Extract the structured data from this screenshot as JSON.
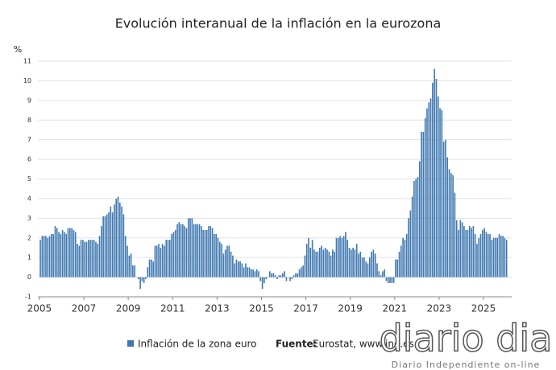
{
  "chart_data": {
    "type": "bar",
    "title": "Evolución interanual de la inflación en la eurozona",
    "y_label": "%",
    "series": [
      {
        "name": "Inflación de la zona euro",
        "color": "#3f78b0",
        "values": [
          1.9,
          2.1,
          2.1,
          2.1,
          2.0,
          2.1,
          2.2,
          2.2,
          2.6,
          2.5,
          2.3,
          2.2,
          2.4,
          2.3,
          2.2,
          2.5,
          2.5,
          2.5,
          2.4,
          2.3,
          1.7,
          1.6,
          1.9,
          1.9,
          1.8,
          1.8,
          1.9,
          1.9,
          1.9,
          1.9,
          1.8,
          1.7,
          2.1,
          2.6,
          3.1,
          3.1,
          3.2,
          3.3,
          3.6,
          3.3,
          3.7,
          4.0,
          4.1,
          3.8,
          3.6,
          3.2,
          2.1,
          1.6,
          1.1,
          1.2,
          0.6,
          0.6,
          0.0,
          -0.1,
          -0.6,
          -0.2,
          -0.3,
          -0.1,
          0.5,
          0.9,
          0.9,
          0.8,
          1.6,
          1.6,
          1.7,
          1.5,
          1.7,
          1.6,
          1.9,
          1.9,
          1.9,
          2.2,
          2.3,
          2.4,
          2.7,
          2.8,
          2.7,
          2.7,
          2.6,
          2.5,
          3.0,
          3.0,
          3.0,
          2.7,
          2.7,
          2.7,
          2.7,
          2.6,
          2.4,
          2.4,
          2.4,
          2.6,
          2.6,
          2.5,
          2.2,
          2.2,
          2.0,
          1.8,
          1.7,
          1.2,
          1.4,
          1.6,
          1.6,
          1.3,
          1.1,
          0.7,
          0.9,
          0.8,
          0.8,
          0.7,
          0.5,
          0.7,
          0.5,
          0.5,
          0.4,
          0.4,
          0.3,
          0.4,
          0.3,
          -0.2,
          -0.6,
          -0.3,
          -0.1,
          0.0,
          0.3,
          0.2,
          0.2,
          0.1,
          -0.1,
          0.1,
          0.1,
          0.2,
          0.3,
          -0.2,
          0.0,
          -0.2,
          -0.1,
          0.1,
          0.2,
          0.2,
          0.4,
          0.5,
          0.6,
          1.1,
          1.7,
          2.0,
          1.5,
          1.9,
          1.4,
          1.3,
          1.3,
          1.5,
          1.6,
          1.4,
          1.5,
          1.4,
          1.3,
          1.1,
          1.4,
          1.3,
          2.0,
          2.0,
          2.1,
          2.0,
          2.1,
          2.3,
          1.9,
          1.5,
          1.4,
          1.5,
          1.4,
          1.7,
          1.2,
          1.3,
          1.0,
          1.0,
          0.8,
          0.7,
          1.0,
          1.3,
          1.4,
          1.2,
          0.7,
          0.3,
          0.1,
          0.3,
          0.4,
          -0.2,
          -0.3,
          -0.3,
          -0.3,
          -0.3,
          0.9,
          0.9,
          1.3,
          1.6,
          2.0,
          1.9,
          2.2,
          3.0,
          3.4,
          4.1,
          4.9,
          5.0,
          5.1,
          5.9,
          7.4,
          7.4,
          8.1,
          8.6,
          8.9,
          9.1,
          9.9,
          10.6,
          10.1,
          9.2,
          8.6,
          8.5,
          6.9,
          7.0,
          6.1,
          5.5,
          5.3,
          5.2,
          4.3,
          2.9,
          2.4,
          2.9,
          2.8,
          2.6,
          2.4,
          2.4,
          2.6,
          2.5,
          2.6,
          2.2,
          1.7,
          2.0,
          2.2,
          2.4,
          2.5,
          2.3,
          2.2,
          2.2,
          1.9,
          2.0,
          2.0,
          2.0,
          2.2,
          2.1,
          2.1,
          2.0,
          1.9
        ]
      }
    ],
    "xlim": [
      2004.93,
      2026.27
    ],
    "xticks": [
      2005,
      2007,
      2009,
      2011,
      2013,
      2015,
      2017,
      2019,
      2021,
      2023,
      2025
    ],
    "ylim": [
      -1,
      11
    ],
    "yticks": [
      -1,
      0,
      1,
      2,
      3,
      4,
      5,
      6,
      7,
      8,
      9,
      10,
      11
    ],
    "grid": true,
    "source_label": "Fuente:",
    "source": "Eurostat, www.ine.es"
  },
  "watermark": {
    "brand": "diario dia",
    "tagline": "Diario Independiente on-line"
  }
}
